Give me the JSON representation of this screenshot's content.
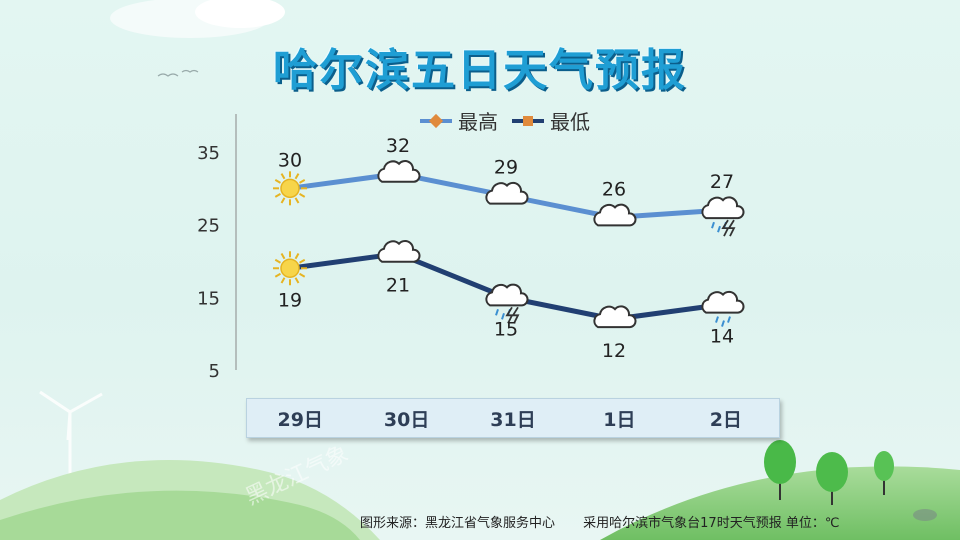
{
  "title": "哈尔滨五日天气预报",
  "legend": {
    "high_label": "最高",
    "low_label": "最低"
  },
  "colors": {
    "high_line": "#5b8fd1",
    "low_line": "#213f72",
    "title": "#1f9ed4",
    "date_bar_bg": "#dfeef6"
  },
  "footer": {
    "source": "图形来源：黑龙江省气象服务中心",
    "note": "采用哈尔滨市气象台17时天气预报 单位：℃"
  },
  "watermark": "黑龙江气象",
  "chart_data": {
    "type": "line",
    "categories": [
      "29日",
      "30日",
      "31日",
      "1日",
      "2日"
    ],
    "ylim": [
      5,
      35
    ],
    "yticks": [
      5,
      15,
      25,
      35
    ],
    "grid": false,
    "legend_position": "top-center",
    "series": [
      {
        "name": "最高",
        "values": [
          30,
          32,
          29,
          26,
          27
        ]
      },
      {
        "name": "最低",
        "values": [
          19,
          21,
          15,
          12,
          14
        ]
      }
    ],
    "high_icons": [
      "sun-icon",
      "cloud-icon",
      "cloud-icon",
      "cloud-icon",
      "thunder-rain-icon"
    ],
    "low_icons": [
      "sun-icon",
      "cloud-icon",
      "thunder-rain-icon",
      "cloud-icon",
      "rain-cloud-icon"
    ]
  }
}
